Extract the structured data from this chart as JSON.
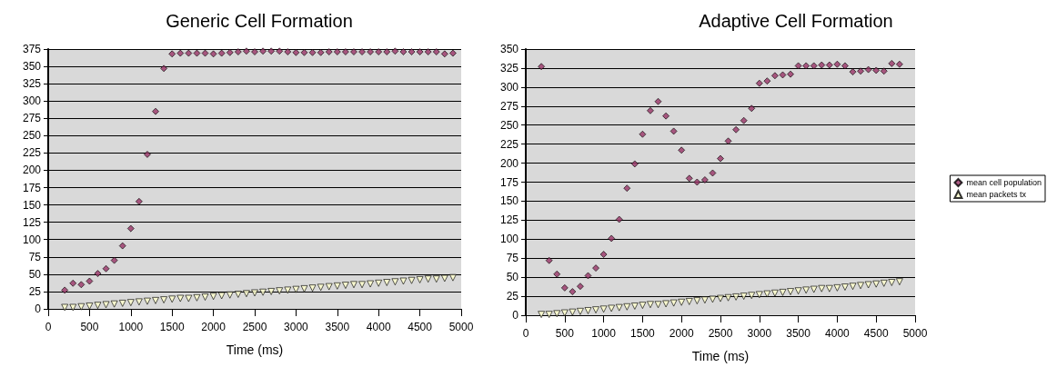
{
  "chart_data": [
    {
      "type": "scatter",
      "title": "Generic Cell Formation",
      "xlabel": "Time (ms)",
      "xlim": [
        0,
        5000
      ],
      "xticks": [
        0,
        500,
        1000,
        1500,
        2000,
        2500,
        3000,
        3500,
        4000,
        4500,
        5000
      ],
      "ylim": [
        0,
        375
      ],
      "yticks": [
        0,
        25,
        50,
        75,
        100,
        125,
        150,
        175,
        200,
        225,
        250,
        275,
        300,
        325,
        350,
        375
      ],
      "grid": "y",
      "legend": false,
      "x": [
        200,
        300,
        400,
        500,
        600,
        700,
        800,
        900,
        1000,
        1100,
        1200,
        1300,
        1400,
        1500,
        1600,
        1700,
        1800,
        1900,
        2000,
        2100,
        2200,
        2300,
        2400,
        2500,
        2600,
        2700,
        2800,
        2900,
        3000,
        3100,
        3200,
        3300,
        3400,
        3500,
        3600,
        3700,
        3800,
        3900,
        4000,
        4100,
        4200,
        4300,
        4400,
        4500,
        4600,
        4700,
        4800,
        4900
      ],
      "series": [
        {
          "color": "#993366",
          "marker": "diamond",
          "values": [
            27,
            37,
            35,
            40,
            51,
            58,
            70,
            91,
            116,
            155,
            223,
            285,
            347,
            368,
            369,
            369,
            369,
            369,
            368,
            369,
            370,
            371,
            372,
            371,
            372,
            372,
            372,
            371,
            370,
            370,
            370,
            370,
            371,
            371,
            371,
            371,
            371,
            371,
            371,
            371,
            372,
            371,
            371,
            371,
            371,
            371,
            368,
            369
          ]
        },
        {
          "color": "#ffffcc",
          "marker": "triangle",
          "values": [
            2,
            2,
            3,
            4,
            5,
            6,
            7,
            8,
            9,
            10,
            11,
            12,
            13,
            14,
            15,
            15,
            16,
            17,
            18,
            19,
            20,
            21,
            22,
            23,
            24,
            25,
            26,
            27,
            28,
            29,
            30,
            31,
            32,
            33,
            34,
            35,
            35,
            36,
            37,
            38,
            39,
            40,
            41,
            42,
            43,
            43,
            44,
            45
          ]
        }
      ]
    },
    {
      "type": "scatter",
      "title": "Adaptive Cell Formation",
      "xlabel": "Time (ms)",
      "xlim": [
        0,
        5000
      ],
      "xticks": [
        0,
        500,
        1000,
        1500,
        2000,
        2500,
        3000,
        3500,
        4000,
        4500,
        5000
      ],
      "ylim": [
        0,
        350
      ],
      "yticks": [
        0,
        25,
        50,
        75,
        100,
        125,
        150,
        175,
        200,
        225,
        250,
        275,
        300,
        325,
        350
      ],
      "grid": "y",
      "legend": "right",
      "x": [
        200,
        300,
        400,
        500,
        600,
        700,
        800,
        900,
        1000,
        1100,
        1200,
        1300,
        1400,
        1500,
        1600,
        1700,
        1800,
        1900,
        2000,
        2100,
        2200,
        2300,
        2400,
        2500,
        2600,
        2700,
        2800,
        2900,
        3000,
        3100,
        3200,
        3300,
        3400,
        3500,
        3600,
        3700,
        3800,
        3900,
        4000,
        4100,
        4200,
        4300,
        4400,
        4500,
        4600,
        4700,
        4800
      ],
      "series": [
        {
          "name": "mean cell population",
          "color": "#993366",
          "marker": "diamond",
          "values": [
            327,
            72,
            54,
            36,
            31,
            38,
            52,
            62,
            80,
            101,
            126,
            167,
            199,
            238,
            269,
            281,
            262,
            242,
            217,
            180,
            175,
            178,
            187,
            206,
            229,
            244,
            256,
            272,
            305,
            308,
            315,
            316,
            317,
            328,
            328,
            328,
            329,
            329,
            330,
            328,
            320,
            321,
            323,
            322,
            321,
            331,
            330
          ]
        },
        {
          "name": "mean packets tx",
          "color": "#ffffcc",
          "marker": "triangle",
          "values": [
            1,
            1,
            2,
            3,
            4,
            5,
            6,
            7,
            8,
            9,
            10,
            11,
            12,
            13,
            14,
            14,
            15,
            16,
            17,
            18,
            19,
            20,
            21,
            22,
            23,
            24,
            25,
            26,
            27,
            28,
            29,
            30,
            31,
            32,
            33,
            34,
            35,
            35,
            36,
            37,
            38,
            39,
            40,
            41,
            42,
            43,
            44
          ]
        }
      ]
    }
  ]
}
